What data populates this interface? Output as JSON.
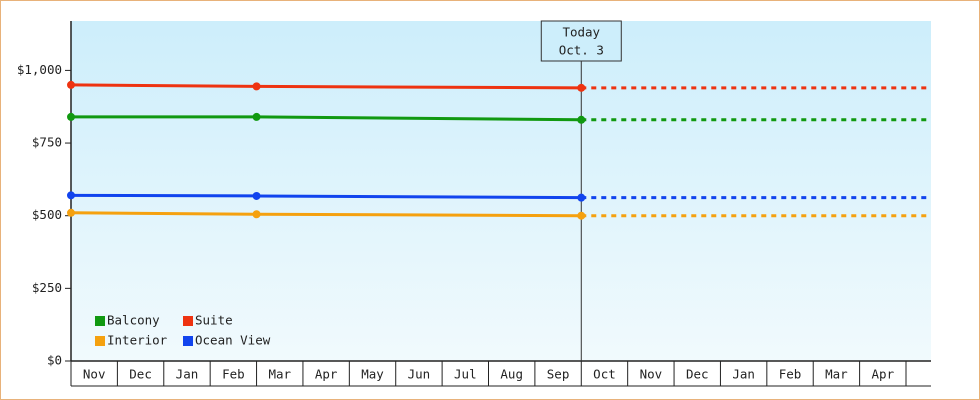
{
  "chart_data": {
    "type": "line",
    "categories": [
      "Nov",
      "Dec",
      "Jan",
      "Feb",
      "Mar",
      "Apr",
      "May",
      "Jun",
      "Jul",
      "Aug",
      "Sep",
      "Oct",
      "Nov",
      "Dec",
      "Jan",
      "Feb",
      "Mar",
      "Apr"
    ],
    "x": [
      "Nov",
      "Mar",
      "Oct"
    ],
    "series": [
      {
        "name": "Balcony",
        "color": "#119911",
        "values": [
          840,
          840,
          830
        ]
      },
      {
        "name": "Suite",
        "color": "#ee3311",
        "values": [
          950,
          945,
          940
        ]
      },
      {
        "name": "Interior",
        "color": "#f5a10f",
        "values": [
          510,
          505,
          500
        ]
      },
      {
        "name": "Ocean View",
        "color": "#1144ee",
        "values": [
          570,
          568,
          562
        ]
      }
    ],
    "ylim": [
      0,
      1170
    ],
    "yticks": [
      {
        "value": 0,
        "label": "$0"
      },
      {
        "value": 250,
        "label": "$250"
      },
      {
        "value": 500,
        "label": "$500"
      },
      {
        "value": 750,
        "label": "$750"
      },
      {
        "value": 1000,
        "label": "$1,000"
      }
    ],
    "annotation": [
      "Today",
      "Oct. 3"
    ]
  }
}
